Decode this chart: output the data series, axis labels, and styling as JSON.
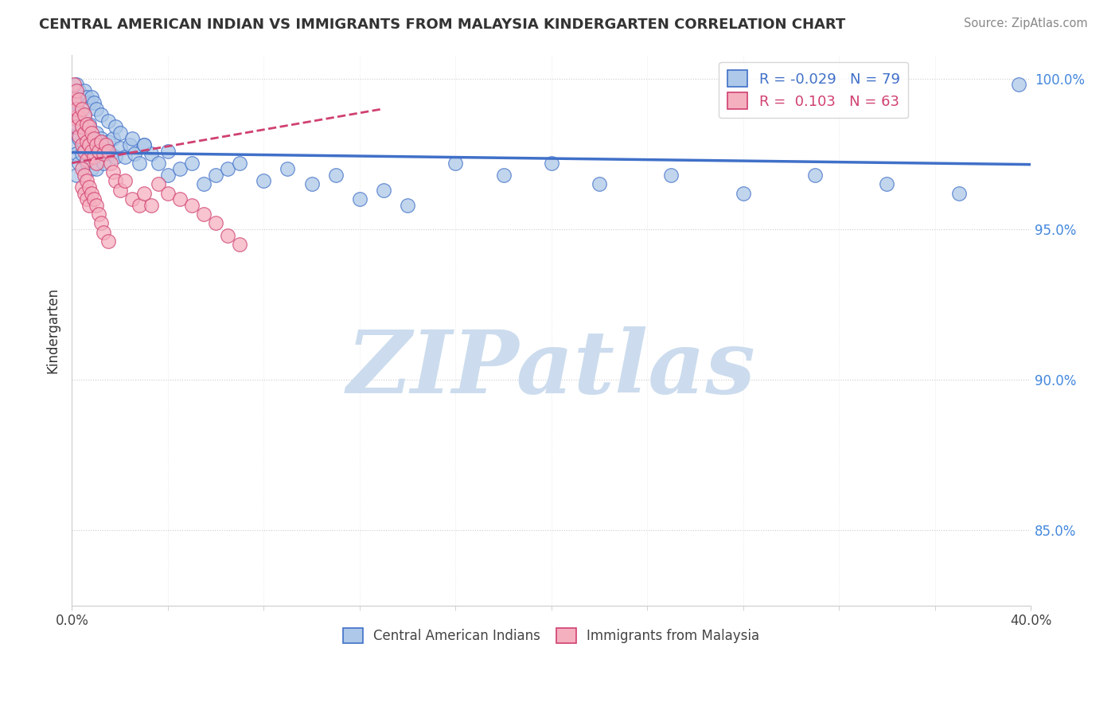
{
  "title": "CENTRAL AMERICAN INDIAN VS IMMIGRANTS FROM MALAYSIA KINDERGARTEN CORRELATION CHART",
  "source": "Source: ZipAtlas.com",
  "ylabel": "Kindergarten",
  "legend_blue_r": "-0.029",
  "legend_blue_n": "79",
  "legend_pink_r": "0.103",
  "legend_pink_n": "63",
  "blue_color": "#adc8e8",
  "pink_color": "#f5b0c0",
  "blue_line_color": "#4070c8",
  "pink_line_color": "#d04070",
  "watermark": "ZIPatlas",
  "watermark_color": "#ccdcee",
  "xlim": [
    0.0,
    0.4
  ],
  "ylim": [
    0.825,
    1.008
  ],
  "yticks": [
    0.85,
    0.9,
    0.95,
    1.0
  ],
  "blue_scatter_x": [
    0.001,
    0.001,
    0.001,
    0.002,
    0.002,
    0.002,
    0.002,
    0.003,
    0.003,
    0.003,
    0.004,
    0.004,
    0.005,
    0.005,
    0.006,
    0.006,
    0.007,
    0.007,
    0.008,
    0.008,
    0.009,
    0.01,
    0.01,
    0.011,
    0.012,
    0.013,
    0.014,
    0.015,
    0.016,
    0.017,
    0.018,
    0.02,
    0.022,
    0.024,
    0.026,
    0.028,
    0.03,
    0.033,
    0.036,
    0.04,
    0.045,
    0.05,
    0.055,
    0.06,
    0.065,
    0.07,
    0.08,
    0.09,
    0.1,
    0.11,
    0.12,
    0.13,
    0.14,
    0.16,
    0.18,
    0.2,
    0.22,
    0.25,
    0.28,
    0.31,
    0.34,
    0.37,
    0.395,
    0.002,
    0.003,
    0.004,
    0.005,
    0.006,
    0.007,
    0.008,
    0.009,
    0.01,
    0.012,
    0.015,
    0.018,
    0.02,
    0.025,
    0.03,
    0.04
  ],
  "blue_scatter_y": [
    0.99,
    0.984,
    0.978,
    0.992,
    0.985,
    0.975,
    0.968,
    0.988,
    0.98,
    0.972,
    0.985,
    0.975,
    0.988,
    0.978,
    0.982,
    0.972,
    0.985,
    0.974,
    0.98,
    0.97,
    0.975,
    0.982,
    0.97,
    0.975,
    0.98,
    0.972,
    0.976,
    0.979,
    0.975,
    0.98,
    0.974,
    0.977,
    0.974,
    0.978,
    0.975,
    0.972,
    0.978,
    0.975,
    0.972,
    0.968,
    0.97,
    0.972,
    0.965,
    0.968,
    0.97,
    0.972,
    0.966,
    0.97,
    0.965,
    0.968,
    0.96,
    0.963,
    0.958,
    0.972,
    0.968,
    0.972,
    0.965,
    0.968,
    0.962,
    0.968,
    0.965,
    0.962,
    0.998,
    0.998,
    0.996,
    0.994,
    0.996,
    0.994,
    0.992,
    0.994,
    0.992,
    0.99,
    0.988,
    0.986,
    0.984,
    0.982,
    0.98,
    0.978,
    0.976
  ],
  "pink_scatter_x": [
    0.001,
    0.001,
    0.001,
    0.002,
    0.002,
    0.002,
    0.003,
    0.003,
    0.003,
    0.004,
    0.004,
    0.004,
    0.005,
    0.005,
    0.005,
    0.006,
    0.006,
    0.006,
    0.007,
    0.007,
    0.008,
    0.008,
    0.009,
    0.009,
    0.01,
    0.01,
    0.011,
    0.012,
    0.013,
    0.014,
    0.015,
    0.016,
    0.017,
    0.018,
    0.02,
    0.022,
    0.025,
    0.028,
    0.03,
    0.033,
    0.036,
    0.04,
    0.045,
    0.05,
    0.055,
    0.06,
    0.065,
    0.07,
    0.004,
    0.004,
    0.005,
    0.005,
    0.006,
    0.006,
    0.007,
    0.007,
    0.008,
    0.009,
    0.01,
    0.011,
    0.012,
    0.013,
    0.015
  ],
  "pink_scatter_y": [
    0.998,
    0.993,
    0.987,
    0.996,
    0.99,
    0.984,
    0.993,
    0.987,
    0.981,
    0.99,
    0.984,
    0.978,
    0.988,
    0.982,
    0.976,
    0.985,
    0.979,
    0.973,
    0.984,
    0.978,
    0.982,
    0.976,
    0.98,
    0.974,
    0.978,
    0.972,
    0.976,
    0.979,
    0.975,
    0.978,
    0.976,
    0.972,
    0.969,
    0.966,
    0.963,
    0.966,
    0.96,
    0.958,
    0.962,
    0.958,
    0.965,
    0.962,
    0.96,
    0.958,
    0.955,
    0.952,
    0.948,
    0.945,
    0.97,
    0.964,
    0.968,
    0.962,
    0.966,
    0.96,
    0.964,
    0.958,
    0.962,
    0.96,
    0.958,
    0.955,
    0.952,
    0.949,
    0.946
  ],
  "blue_trend_x": [
    0.0,
    0.4
  ],
  "blue_trend_y": [
    0.9755,
    0.9715
  ],
  "pink_trend_x": [
    0.0,
    0.13
  ],
  "pink_trend_y": [
    0.972,
    0.99
  ]
}
